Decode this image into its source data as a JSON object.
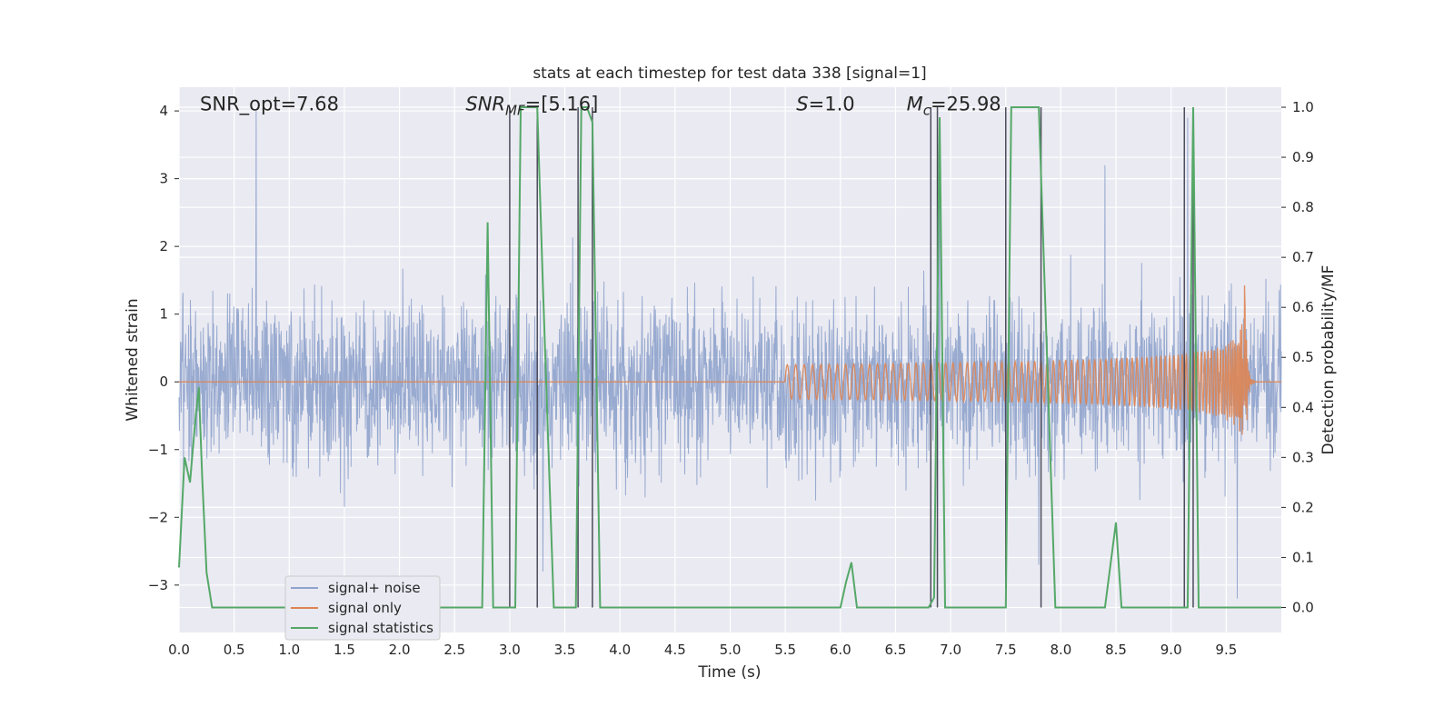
{
  "chart_data": {
    "type": "line",
    "title": "stats at each timestep for test data 338 [signal=1]",
    "xlabel": "Time (s)",
    "ylabel": "Whitened strain",
    "ylabel_right": "Detection probability/MF",
    "xlim": [
      0.0,
      10.0
    ],
    "ylim": [
      -3.7,
      4.35
    ],
    "ylim_right": [
      -0.05,
      1.04
    ],
    "xticks": [
      0.0,
      0.5,
      1.0,
      1.5,
      2.0,
      2.5,
      3.0,
      3.5,
      4.0,
      4.5,
      5.0,
      5.5,
      6.0,
      6.5,
      7.0,
      7.5,
      8.0,
      8.5,
      9.0,
      9.5
    ],
    "xtick_labels": [
      "0.0",
      "0.5",
      "1.0",
      "1.5",
      "2.0",
      "2.5",
      "3.0",
      "3.5",
      "4.0",
      "4.5",
      "5.0",
      "5.5",
      "6.0",
      "6.5",
      "7.0",
      "7.5",
      "8.0",
      "8.5",
      "9.0",
      "9.5"
    ],
    "yticks_left": [
      -3,
      -2,
      -1,
      0,
      1,
      2,
      3,
      4
    ],
    "ytick_labels_left": [
      "−3",
      "−2",
      "−1",
      "0",
      "1",
      "2",
      "3",
      "4"
    ],
    "yticks_right": [
      0.0,
      0.1,
      0.2,
      0.3,
      0.4,
      0.5,
      0.6,
      0.7,
      0.8,
      0.9,
      1.0
    ],
    "ytick_labels_right": [
      "0.0",
      "0.1",
      "0.2",
      "0.3",
      "0.4",
      "0.5",
      "0.6",
      "0.7",
      "0.8",
      "0.9",
      "1.0"
    ],
    "grid": true,
    "legend_position": "lower-left",
    "annotations": [
      {
        "text": "SNR_opt=7.68",
        "x": 0.19,
        "y": 4.1
      },
      {
        "text": "SNR_MF=[5.16]",
        "x": 2.6,
        "y": 4.1
      },
      {
        "text": "S=1.0",
        "x": 5.6,
        "y": 4.1
      },
      {
        "text": "M_c=25.98",
        "x": 6.6,
        "y": 4.1
      }
    ],
    "series": [
      {
        "name": "signal+ noise",
        "color": "#8fa3cc",
        "noise_std": 0.85,
        "peaks": [
          {
            "x": 0.7,
            "y": 4.0
          },
          {
            "x": 3.3,
            "y": -2.8
          },
          {
            "x": 6.9,
            "y": 3.9
          },
          {
            "x": 7.8,
            "y": -2.7
          },
          {
            "x": 8.4,
            "y": 3.2
          },
          {
            "x": 9.15,
            "y": 3.9
          },
          {
            "x": 9.6,
            "y": -3.2
          }
        ]
      },
      {
        "name": "signal only",
        "color": "#dd8452",
        "chirp_start": 5.5,
        "chirp_merger": 9.67,
        "chirp_peak_amplitude": 1.6
      },
      {
        "name": "signal statistics",
        "color": "#55a868",
        "axis": "right",
        "x": [
          0.0,
          0.05,
          0.1,
          0.15,
          0.18,
          0.21,
          0.25,
          0.3,
          0.5,
          1.0,
          1.5,
          2.0,
          2.5,
          2.75,
          2.8,
          2.85,
          2.9,
          3.0,
          3.05,
          3.1,
          3.25,
          3.3,
          3.4,
          3.6,
          3.65,
          3.7,
          3.75,
          3.82,
          3.9,
          4.5,
          5.0,
          5.5,
          6.0,
          6.05,
          6.1,
          6.15,
          6.5,
          6.8,
          6.85,
          6.9,
          6.95,
          7.0,
          7.5,
          7.55,
          7.8,
          7.95,
          8.0,
          8.4,
          8.5,
          8.55,
          8.6,
          9.0,
          9.15,
          9.2,
          9.25,
          9.3,
          9.5,
          10.0
        ],
        "y": [
          0.08,
          0.3,
          0.25,
          0.38,
          0.44,
          0.26,
          0.07,
          0.0,
          0.0,
          0.0,
          0.0,
          0.0,
          0.0,
          0.0,
          0.77,
          0.0,
          0.0,
          0.0,
          0.0,
          1.0,
          1.0,
          0.65,
          0.0,
          0.0,
          1.0,
          1.0,
          0.97,
          0.0,
          0.0,
          0.0,
          0.0,
          0.0,
          0.0,
          0.05,
          0.09,
          0.0,
          0.0,
          0.0,
          0.02,
          0.98,
          0.0,
          0.0,
          0.0,
          1.0,
          1.0,
          0.0,
          0.0,
          0.0,
          0.17,
          0.0,
          0.0,
          0.0,
          0.0,
          1.0,
          0.0,
          0.0,
          0.0,
          0.0
        ]
      }
    ],
    "vertical_lines": {
      "color": "#4c4c5c",
      "x": [
        3.0,
        3.25,
        3.62,
        3.75,
        6.82,
        6.88,
        7.5,
        7.82,
        9.12,
        9.2
      ]
    }
  }
}
